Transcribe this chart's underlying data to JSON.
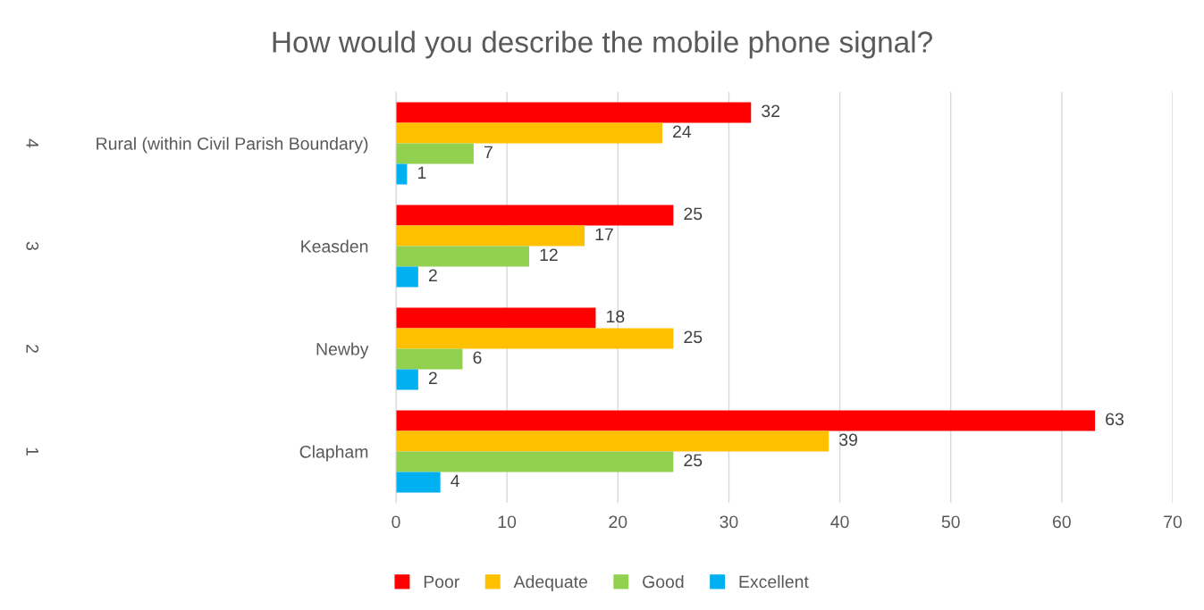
{
  "chart_data": {
    "type": "bar",
    "orientation": "horizontal",
    "title": "How would you describe the mobile phone signal?",
    "categories": [
      "Rural (within Civil Parish Boundary)",
      "Keasden",
      "Newby",
      "Clapham"
    ],
    "series": [
      {
        "name": "Poor",
        "color": "#ff0000",
        "values": [
          32,
          25,
          18,
          63
        ]
      },
      {
        "name": "Adequate",
        "color": "#ffc000",
        "values": [
          24,
          17,
          25,
          39
        ]
      },
      {
        "name": "Good",
        "color": "#92d050",
        "values": [
          7,
          12,
          6,
          25
        ]
      },
      {
        "name": "Excellent",
        "color": "#00b0f0",
        "values": [
          1,
          2,
          2,
          4
        ]
      }
    ],
    "annotations": [
      "4",
      "3",
      "2",
      "1"
    ],
    "xlim": [
      0,
      70
    ],
    "xticks": [
      0,
      10,
      20,
      30,
      40,
      50,
      60,
      70
    ],
    "grid": "x",
    "legend": "bottom",
    "data_labels": true
  }
}
